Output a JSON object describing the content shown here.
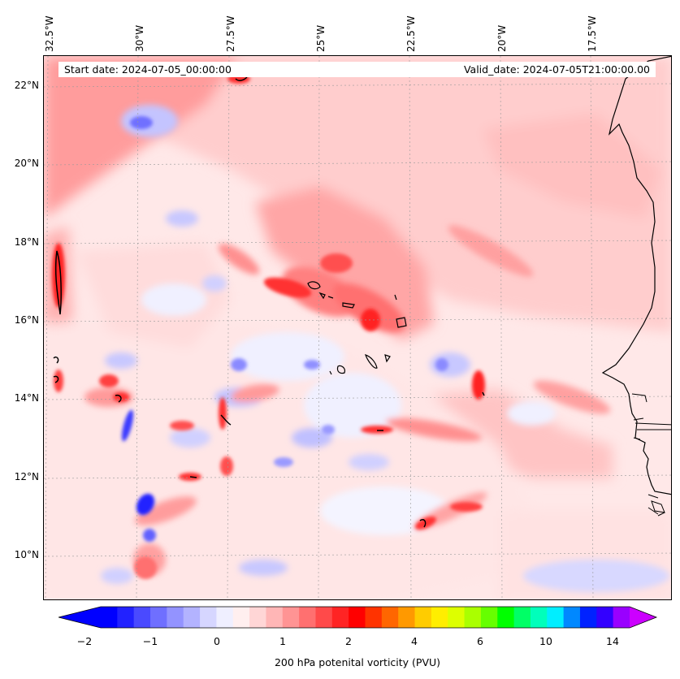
{
  "map": {
    "start_label": "Start date: 2024-07-05_00:00:00",
    "valid_label": "Valid_date: 2024-07-05T21:00:00.00",
    "lon_labels": [
      "32.5°W",
      "30°W",
      "27.5°W",
      "25°W",
      "22.5°W",
      "20°W",
      "17.5°W"
    ],
    "lat_labels": [
      "22°N",
      "20°N",
      "18°N",
      "16°N",
      "14°N",
      "12°N",
      "10°N"
    ],
    "colors": {
      "neg_strong": "#0000ff",
      "neg_mid": "#7b7bff",
      "neg_light": "#d2d2ff",
      "pos_light": "#ffd2d2",
      "pos_mid": "#ff7b7b",
      "pos_strong": "#ff0000",
      "coast": "#000000"
    }
  },
  "colorbar": {
    "label": "200 hPa potenital vorticity (PVU)",
    "ticks": [
      "−2",
      "−1",
      "0",
      "1",
      "2",
      "4",
      "6",
      "10",
      "14"
    ],
    "colors": [
      "#0000ff",
      "#2222ff",
      "#4a4aff",
      "#6f6fff",
      "#9393ff",
      "#b3b3ff",
      "#d6d6ff",
      "#efefff",
      "#ffefef",
      "#ffd6d6",
      "#ffb6b6",
      "#ff9494",
      "#ff7070",
      "#ff4a4a",
      "#ff2424",
      "#ff0000",
      "#ff3300",
      "#ff6600",
      "#ff9900",
      "#ffcc00",
      "#ffee00",
      "#ddff00",
      "#aaff00",
      "#66ff00",
      "#00ff00",
      "#00ff66",
      "#00ffbb",
      "#00eeff",
      "#0088ff",
      "#0022ff",
      "#3300ff",
      "#9900ff"
    ],
    "extend_low": "#0000ff",
    "extend_high": "#cc00ff"
  }
}
